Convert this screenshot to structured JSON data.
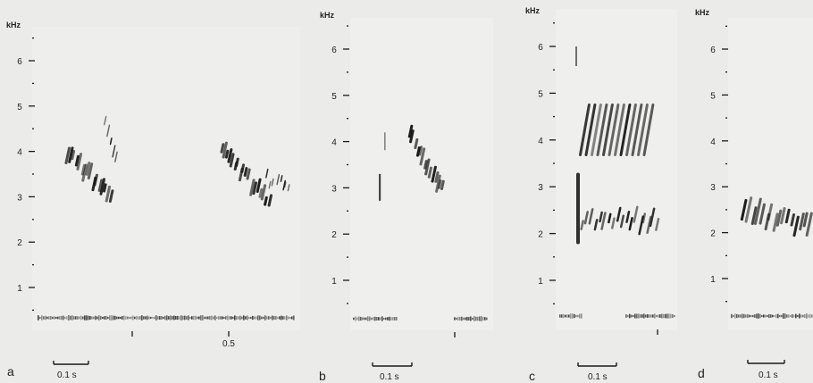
{
  "figure": {
    "panels": [
      {
        "letter": "a",
        "unit": "kHz",
        "scale_bar": "0.1 s",
        "time_marks": [
          {
            "t": 0.4,
            "label": ""
          },
          {
            "t": 0.5,
            "label": "0.5"
          }
        ]
      },
      {
        "letter": "b",
        "unit": "kHz",
        "scale_bar": "0.1 s",
        "time_marks": []
      },
      {
        "letter": "c",
        "unit": "kHz",
        "scale_bar": "0.1 s",
        "time_marks": []
      },
      {
        "letter": "d",
        "unit": "kHz",
        "scale_bar": "0.1 s",
        "time_marks": []
      }
    ],
    "y_tick_labels": [
      "1",
      "2",
      "3",
      "4",
      "5",
      "6"
    ],
    "ink_color": "#1a1a1a",
    "background_color": "#ebebea"
  }
}
